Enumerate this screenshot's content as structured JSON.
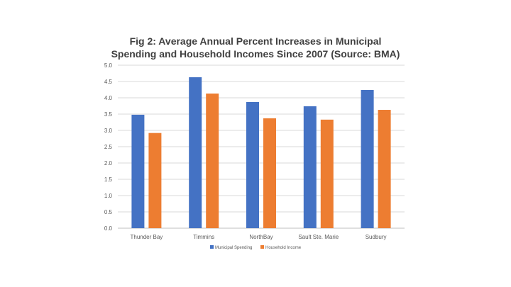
{
  "chart_data": {
    "type": "bar",
    "title_lines": [
      "Fig 2: Average Annual Percent Increases in Municipal",
      "Spending and Household Incomes Since 2007 (Source: BMA)"
    ],
    "categories": [
      "Thunder Bay",
      "Timmins",
      "NorthBay",
      "Sault Ste. Marie",
      "Sudbury"
    ],
    "series": [
      {
        "name": "Municipal Spending",
        "color": "#4472C4",
        "values": [
          3.48,
          4.63,
          3.87,
          3.74,
          4.24
        ]
      },
      {
        "name": "Household Income",
        "color": "#ED7D31",
        "values": [
          2.92,
          4.13,
          3.37,
          3.33,
          3.63
        ]
      }
    ],
    "y_ticks": [
      "0.0",
      "0.5",
      "1.0",
      "1.5",
      "2.0",
      "2.5",
      "3.0",
      "3.5",
      "4.0",
      "4.5",
      "5.0"
    ],
    "ylim": [
      0,
      5
    ],
    "grid": true,
    "legend_position": "bottom"
  }
}
